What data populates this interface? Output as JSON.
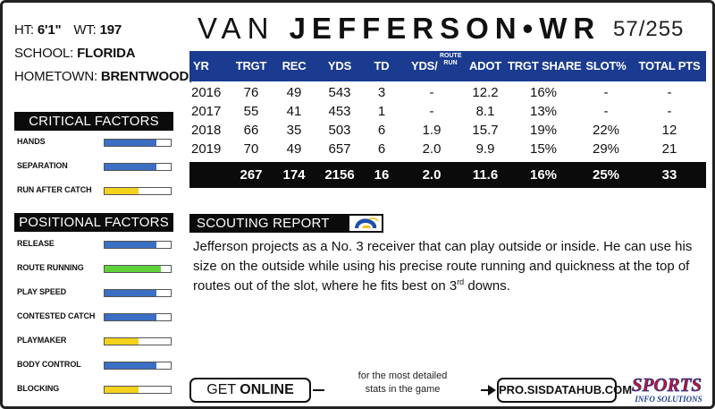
{
  "bio": {
    "ht_label": "HT:",
    "ht": "6'1\"",
    "wt_label": "WT:",
    "wt": "197",
    "school_label": "SCHOOL:",
    "school": "FLORIDA",
    "hometown_label": "HOMETOWN:",
    "hometown": "BRENTWOOD, FL"
  },
  "critical_factors": {
    "title": "CRITICAL FACTORS",
    "items": [
      {
        "label": "HANDS",
        "fill": 0.78,
        "color": "#3a6fc4"
      },
      {
        "label": "SEPARATION",
        "fill": 0.78,
        "color": "#3a6fc4"
      },
      {
        "label": "RUN AFTER CATCH",
        "fill": 0.52,
        "color": "#f2d21b"
      }
    ]
  },
  "positional_factors": {
    "title": "POSITIONAL FACTORS",
    "items": [
      {
        "label": "RELEASE",
        "fill": 0.78,
        "color": "#3a6fc4"
      },
      {
        "label": "ROUTE RUNNING",
        "fill": 0.85,
        "color": "#5fd23a"
      },
      {
        "label": "PLAY SPEED",
        "fill": 0.78,
        "color": "#3a6fc4"
      },
      {
        "label": "CONTESTED CATCH",
        "fill": 0.78,
        "color": "#3a6fc4"
      },
      {
        "label": "PLAYMAKER",
        "fill": 0.52,
        "color": "#f2d21b"
      },
      {
        "label": "BODY CONTROL",
        "fill": 0.78,
        "color": "#3a6fc4"
      },
      {
        "label": "BLOCKING",
        "fill": 0.52,
        "color": "#f2d21b"
      }
    ]
  },
  "header": {
    "first_name": "VAN",
    "last_name": "JEFFERSON",
    "separator": "•",
    "position": "WR",
    "rank": "57/255"
  },
  "stats": {
    "columns": [
      "YR",
      "TRGT",
      "REC",
      "YDS",
      "TD",
      "YDS/",
      "ADOT",
      "TRGT SHARE",
      "SLOT%",
      "TOTAL PTS"
    ],
    "route_run_sub": "ROUTE RUN",
    "rows": [
      [
        "2016",
        "76",
        "49",
        "543",
        "3",
        "-",
        "12.2",
        "16%",
        "-",
        "-"
      ],
      [
        "2017",
        "55",
        "41",
        "453",
        "1",
        "-",
        "8.1",
        "13%",
        "-",
        "-"
      ],
      [
        "2018",
        "66",
        "35",
        "503",
        "6",
        "1.9",
        "15.7",
        "19%",
        "22%",
        "12"
      ],
      [
        "2019",
        "70",
        "49",
        "657",
        "6",
        "2.0",
        "9.9",
        "15%",
        "29%",
        "21"
      ]
    ],
    "totals": [
      "",
      "267",
      "174",
      "2156",
      "16",
      "2.0",
      "11.6",
      "16%",
      "25%",
      "33"
    ],
    "header_color": "#1a3b8f"
  },
  "scouting": {
    "title": "SCOUTING REPORT",
    "team_logo": "rams-logo",
    "text_1": "Jefferson projects as a No. 3 receiver that can play outside or inside.  He can use his size on the outside while using his precise route running and quickness at the top of routes out of the slot, where he fits best on 3",
    "text_sup": "rd",
    "text_2": " downs."
  },
  "footer": {
    "get": "GET ",
    "online": "ONLINE",
    "tagline_1": "for the most detailed",
    "tagline_2": "stats in the game",
    "url": "PRO.SISDATAHUB.COM",
    "logo_top": "SPORTS",
    "logo_bottom": "INFO SOLUTIONS"
  }
}
